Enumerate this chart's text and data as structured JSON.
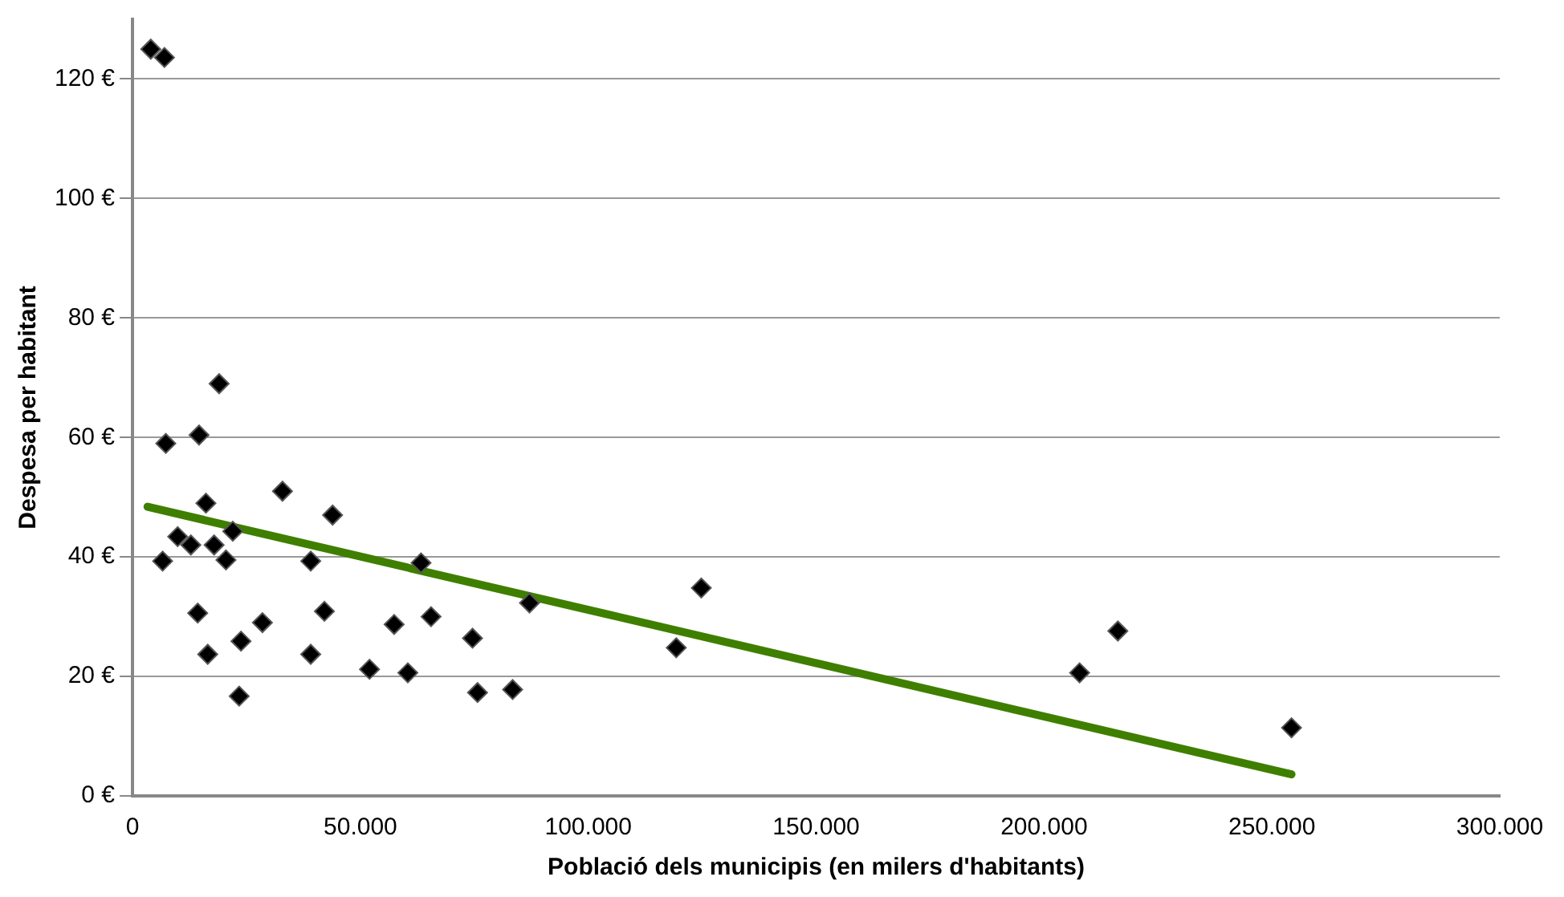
{
  "chart_data": {
    "type": "scatter",
    "xlabel": "Població dels municipis (en milers d'habitants)",
    "ylabel": "Despesa per habitant",
    "xlim": [
      0,
      300000
    ],
    "xticks": [
      0,
      {
        "value": 50000,
        "label": "50.000"
      },
      {
        "value": 100000,
        "label": "100.000"
      },
      {
        "value": 150000,
        "label": "150.000"
      },
      {
        "value": 200000,
        "label": "200.000"
      },
      {
        "value": 250000,
        "label": "250.000"
      },
      {
        "value": 300000,
        "label": "300.000"
      }
    ],
    "ylim": [
      0,
      130
    ],
    "yticks": [
      {
        "value": 0,
        "label": "0 €"
      },
      {
        "value": 20,
        "label": "20 €"
      },
      {
        "value": 40,
        "label": "40 €"
      },
      {
        "value": 60,
        "label": "60 €"
      },
      {
        "value": 80,
        "label": "80 €"
      },
      {
        "value": 100,
        "label": "100 €"
      },
      {
        "value": 120,
        "label": "120 €"
      }
    ],
    "grid": "y",
    "legend": false,
    "marker": "diamond",
    "series": [
      {
        "color": "#000000",
        "x": [
          4000,
          7000,
          6600,
          7300,
          9900,
          12800,
          14600,
          14300,
          16100,
          16500,
          17900,
          19000,
          20500,
          22000,
          23400,
          23800,
          28500,
          32900,
          39100,
          39100,
          42100,
          43900,
          52000,
          57400,
          60400,
          63300,
          65500,
          74600,
          75700,
          83400,
          87100,
          119300,
          124800,
          207800,
          216200,
          254300
        ],
        "values": [
          125,
          123.6,
          39.3,
          59,
          43.4,
          42,
          60.4,
          30.6,
          49,
          23.7,
          42,
          69,
          39.5,
          44.3,
          16.7,
          25.9,
          29,
          51,
          39.3,
          23.7,
          30.9,
          47,
          21.2,
          28.7,
          20.6,
          39,
          30,
          26.4,
          17.3,
          17.8,
          32.3,
          24.8,
          34.8,
          20.6,
          27.6,
          11.4
        ]
      },
      {
        "type": "line",
        "color": "#3f7f00",
        "marker": "none",
        "line_style": "solid",
        "x": [
          3300,
          254300
        ],
        "values": [
          48.4,
          3.6
        ]
      }
    ]
  }
}
